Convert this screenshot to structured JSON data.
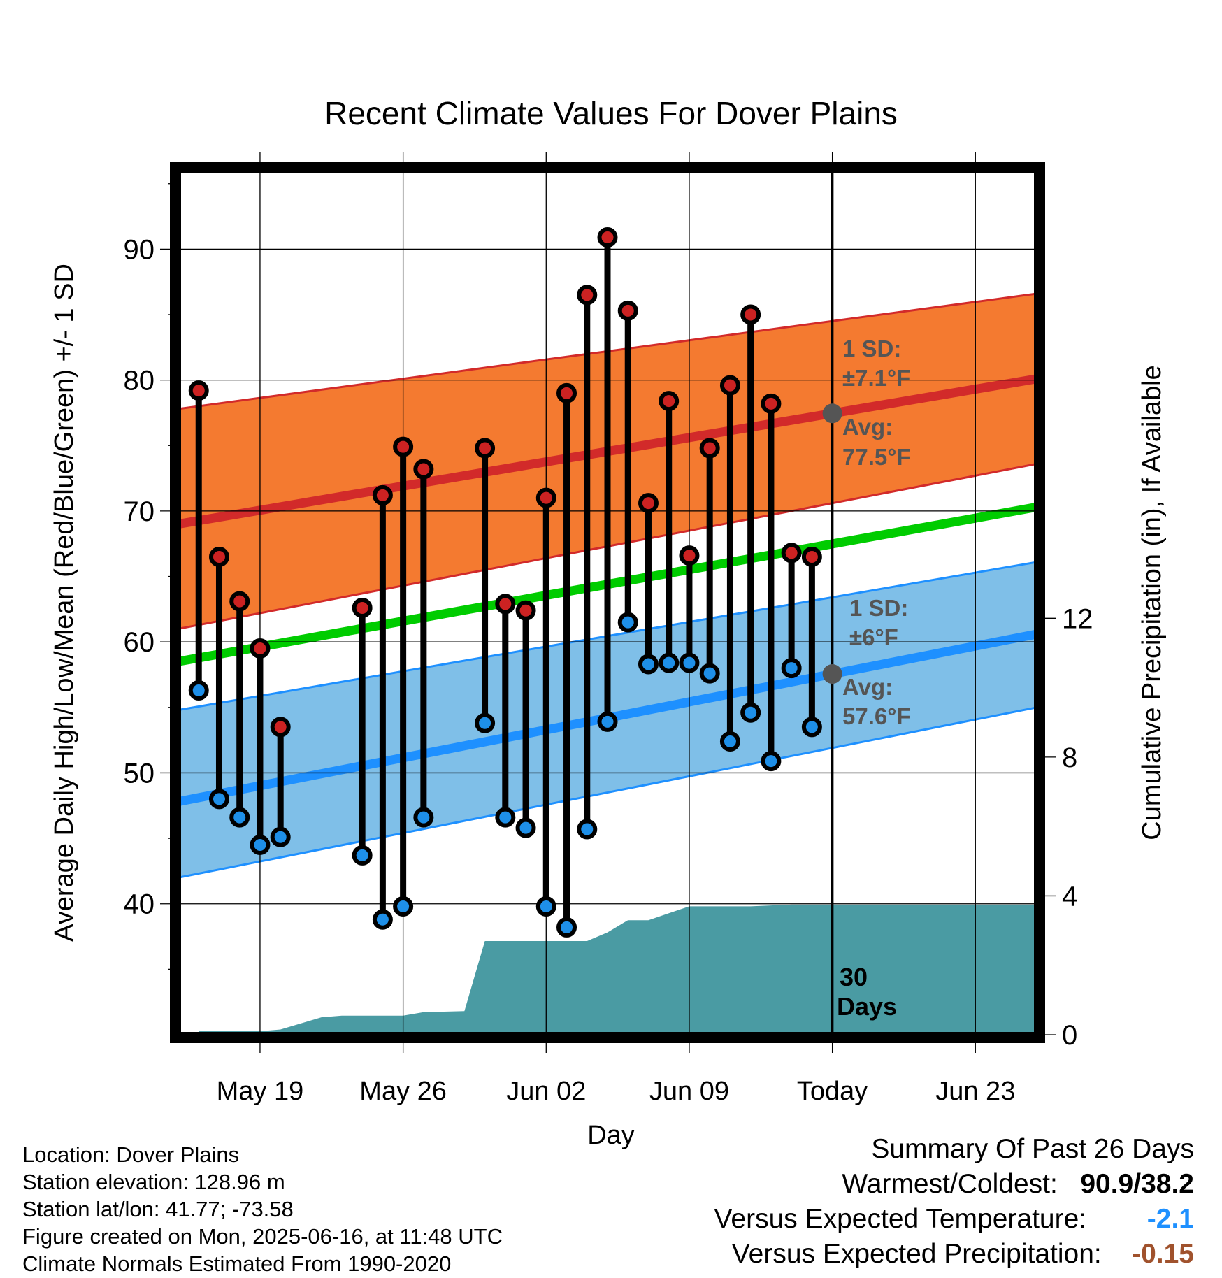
{
  "chart_data": {
    "type": "line",
    "title": "Recent Climate Values For Dover Plains",
    "xlabel": "Day",
    "ylabel": "Average Daily High/Low/Mean (Red/Blue/Green) +/- 1 SD",
    "y2label": "Cumulative Precipitation (in), If Available",
    "x_range_days": [
      -32,
      10
    ],
    "x_tick_labels": [
      {
        "day": -28,
        "label": "May 19"
      },
      {
        "day": -21,
        "label": "May 26"
      },
      {
        "day": -14,
        "label": "Jun 02"
      },
      {
        "day": -7,
        "label": "Jun 09"
      },
      {
        "day": 0,
        "label": "Today"
      },
      {
        "day": 7,
        "label": "Jun 23"
      }
    ],
    "ylim": [
      30,
      96
    ],
    "y_ticks": [
      40,
      50,
      60,
      70,
      80,
      90
    ],
    "y2lim": [
      0,
      24.9
    ],
    "y2_ticks": [
      0,
      4,
      8,
      12
    ],
    "grid": true,
    "normals": {
      "high_mean": {
        "start": 69.0,
        "end": 80.1
      },
      "high_sd_upper": {
        "start": 77.8,
        "end": 86.6
      },
      "high_sd_lower": {
        "start": 61.0,
        "end": 73.6
      },
      "low_mean": {
        "start": 47.8,
        "end": 60.6
      },
      "low_sd_upper": {
        "start": 54.8,
        "end": 66.1
      },
      "low_sd_lower": {
        "start": 42.0,
        "end": 55.0
      },
      "daily_mean": {
        "start": 58.5,
        "end": 70.3
      }
    },
    "series": [
      {
        "name": "High",
        "points": [
          [
            -31,
            79.2
          ],
          [
            -30,
            66.5
          ],
          [
            -29,
            63.1
          ],
          [
            -28,
            59.5
          ],
          [
            -27,
            53.5
          ],
          [
            -23,
            62.6
          ],
          [
            -22,
            71.2
          ],
          [
            -21,
            74.9
          ],
          [
            -20,
            73.2
          ],
          [
            -17,
            74.8
          ],
          [
            -16,
            62.9
          ],
          [
            -15,
            62.4
          ],
          [
            -14,
            71.0
          ],
          [
            -13,
            79.0
          ],
          [
            -12,
            86.5
          ],
          [
            -11,
            90.9
          ],
          [
            -10,
            85.3
          ],
          [
            -9,
            70.6
          ],
          [
            -8,
            78.4
          ],
          [
            -7,
            66.6
          ],
          [
            -6,
            74.8
          ],
          [
            -5,
            79.6
          ],
          [
            -4,
            85.0
          ],
          [
            -3,
            78.2
          ],
          [
            -2,
            66.8
          ],
          [
            -1,
            66.5
          ]
        ]
      },
      {
        "name": "Low",
        "points": [
          [
            -31,
            56.3
          ],
          [
            -30,
            48.0
          ],
          [
            -29,
            46.6
          ],
          [
            -28,
            44.5
          ],
          [
            -27,
            45.1
          ],
          [
            -23,
            43.7
          ],
          [
            -22,
            38.8
          ],
          [
            -21,
            39.8
          ],
          [
            -20,
            46.6
          ],
          [
            -17,
            53.8
          ],
          [
            -16,
            46.6
          ],
          [
            -15,
            45.8
          ],
          [
            -14,
            39.8
          ],
          [
            -13,
            38.2
          ],
          [
            -12,
            45.7
          ],
          [
            -11,
            53.9
          ],
          [
            -10,
            61.5
          ],
          [
            -9,
            58.3
          ],
          [
            -8,
            58.4
          ],
          [
            -7,
            58.4
          ],
          [
            -6,
            57.6
          ],
          [
            -5,
            52.4
          ],
          [
            -4,
            54.6
          ],
          [
            -3,
            50.9
          ],
          [
            -2,
            58.0
          ],
          [
            -1,
            53.5
          ]
        ]
      },
      {
        "name": "Cumulative Precipitation",
        "points": [
          [
            -31,
            0.1
          ],
          [
            -30,
            0.1
          ],
          [
            -28,
            0.1
          ],
          [
            -27,
            0.15
          ],
          [
            -25,
            0.5
          ],
          [
            -24,
            0.55
          ],
          [
            -21,
            0.55
          ],
          [
            -20,
            0.65
          ],
          [
            -18,
            0.68
          ],
          [
            -17,
            2.7
          ],
          [
            -12,
            2.7
          ],
          [
            -11,
            2.95
          ],
          [
            -10,
            3.3
          ],
          [
            -9,
            3.3
          ],
          [
            -8,
            3.5
          ],
          [
            -7,
            3.7
          ],
          [
            -4,
            3.7
          ],
          [
            -2,
            3.75
          ],
          [
            10,
            3.75
          ]
        ]
      }
    ],
    "annotations": {
      "high_sd_label": "1 SD:",
      "high_sd_value": "±7.1°F",
      "high_avg_label": "Avg:",
      "high_avg_value": "77.5°F",
      "low_sd_label": "1 SD:",
      "low_sd_value": "±6°F",
      "low_avg_label": "Avg:",
      "low_avg_value": "57.6°F",
      "days_line1": "30",
      "days_line2": "Days"
    },
    "colors": {
      "high_band": "#f47a30",
      "high_line": "#d22a2a",
      "low_band": "#7fbfe8",
      "low_line": "#1e90ff",
      "mean_line": "#00cc00",
      "precip_fill": "#4a9ba3",
      "high_marker": "#cc2222",
      "low_marker": "#1e8fe8",
      "annotation_text": "#555555",
      "today_marker": "#555555"
    }
  },
  "info": {
    "location": "Location: Dover Plains",
    "elevation": "Station elevation: 128.96 m",
    "latlon": "Station lat/lon: 41.77; -73.58",
    "created": "Figure created on Mon, 2025-06-16, at 11:48 UTC",
    "normals": "Climate Normals Estimated From 1990-2020"
  },
  "summary": {
    "title": "Summary Of Past 26 Days",
    "warm_cold_label": "Warmest/Coldest:",
    "warm_cold_value": "90.9/38.2",
    "temp_label": "Versus Expected Temperature:",
    "temp_value": "-2.1",
    "precip_label": "Versus Expected Precipitation:",
    "precip_value": "-0.15"
  }
}
